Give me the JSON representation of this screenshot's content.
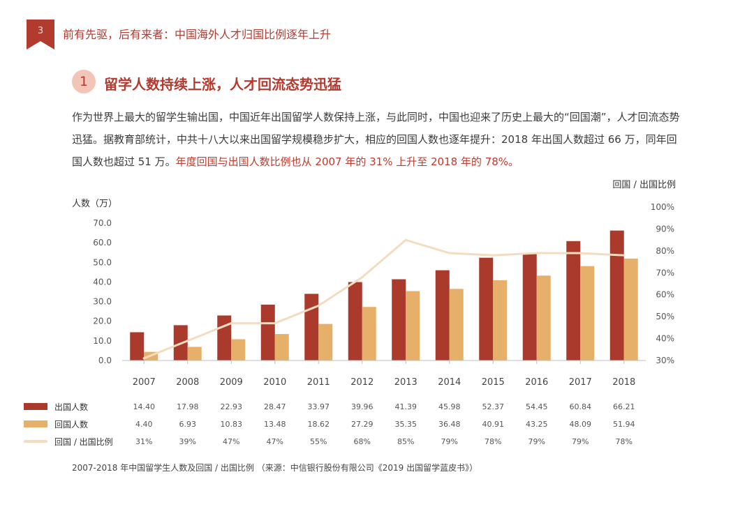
{
  "header": {
    "page_number": "3",
    "title": "前有先驱，后有来者：中国海外人才归国比例逐年上升"
  },
  "section": {
    "number": "1",
    "title": "留学人数持续上涨，人才回流态势迅猛"
  },
  "paragraph": {
    "text_main": "作为世界上最大的留学生输出国，中国近年出国留学人数保持上涨，与此同时，中国也迎来了历史上最大的“回国潮”，人才回流态势迅猛。据教育部统计，中共十八大以来出国留学规模稳步扩大，相应的回国人数也逐年提升：2018 年出国人数超过 66 万，同年回国人数也超过 51 万。",
    "text_highlight": "年度回国与出国人数比例也从 2007 年的 31% 上升至 2018 年的 78%。"
  },
  "colors": {
    "outbound": "#a93a2c",
    "returnee": "#e7b06a",
    "ratio_line": "#f4dcc0",
    "accent": "#b23a2e"
  },
  "chart_data": {
    "type": "bar",
    "title": "2007-2018 年中国留学生人数及回国 / 出国比例",
    "ylabel": "人数（万）",
    "y2label": "回国 / 出国比例",
    "ylim": [
      0,
      70
    ],
    "y_ticks": [
      "0.0",
      "10.0",
      "20.0",
      "30.0",
      "40.0",
      "50.0",
      "60.0",
      "70.0"
    ],
    "y2lim": [
      30,
      100
    ],
    "y2_ticks": [
      "30%",
      "40%",
      "50%",
      "60%",
      "70%",
      "80%",
      "90%",
      "100%"
    ],
    "categories": [
      "2007",
      "2008",
      "2009",
      "2010",
      "2011",
      "2012",
      "2013",
      "2014",
      "2015",
      "2016",
      "2017",
      "2018"
    ],
    "series": [
      {
        "name": "出国人数",
        "kind": "bar",
        "axis": "left",
        "values": [
          14.4,
          17.98,
          22.93,
          28.47,
          33.97,
          39.96,
          41.39,
          45.98,
          52.37,
          54.45,
          60.84,
          66.21
        ],
        "labels": [
          "14.40",
          "17.98",
          "22.93",
          "28.47",
          "33.97",
          "39.96",
          "41.39",
          "45.98",
          "52.37",
          "54.45",
          "60.84",
          "66.21"
        ]
      },
      {
        "name": "回国人数",
        "kind": "bar",
        "axis": "left",
        "values": [
          4.4,
          6.93,
          10.83,
          13.48,
          18.62,
          27.29,
          35.35,
          36.48,
          40.91,
          43.25,
          48.09,
          51.94
        ],
        "labels": [
          "4.40",
          "6.93",
          "10.83",
          "13.48",
          "18.62",
          "27.29",
          "35.35",
          "36.48",
          "40.91",
          "43.25",
          "48.09",
          "51.94"
        ]
      },
      {
        "name": "回国 / 出国比例",
        "kind": "line",
        "axis": "right",
        "values": [
          31,
          39,
          47,
          47,
          55,
          68,
          85,
          79,
          78,
          79,
          79,
          78
        ],
        "labels": [
          "31%",
          "39%",
          "47%",
          "47%",
          "55%",
          "68%",
          "85%",
          "79%",
          "78%",
          "79%",
          "79%",
          "78%"
        ]
      }
    ],
    "source": "2007-2018 年中国留学生人数及回国 / 出国比例 （来源：中信银行股份有限公司《2019 出国留学蓝皮书》）"
  }
}
